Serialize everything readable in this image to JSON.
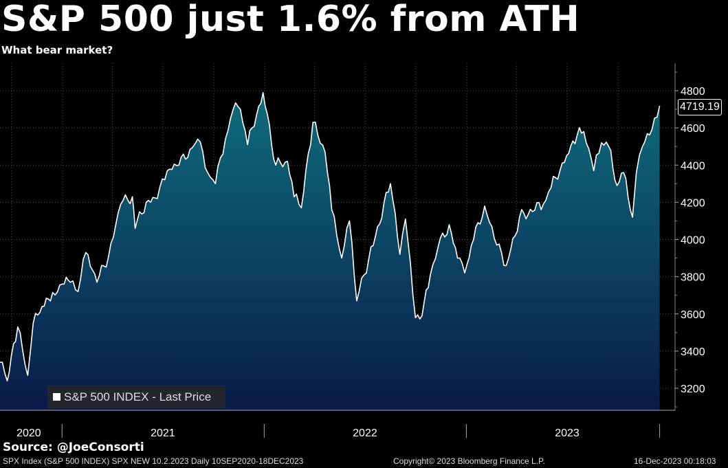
{
  "title": "S&P 500 just 1.6% from ATH",
  "subtitle": "What bear market?",
  "source": "Source:  @JoeConsorti",
  "footer": {
    "left": "SPX Index (S&P 500 INDEX) SPX NEW 10.2.2023  Daily 10SEP2020-18DEC2023",
    "center": "Copyright© 2023 Bloomberg Finance L.P.",
    "right": "16-Dec-2023 00:18:03"
  },
  "chart_data": {
    "type": "area",
    "title": "S&P 500 just 1.6% from ATH",
    "subtitle": "What bear market?",
    "legend": [
      "S&P 500 INDEX - Last Price"
    ],
    "legend_position": "bottom-left",
    "last_value_label": "4719.19",
    "y_axis_side": "right",
    "ylim": [
      3100,
      4900
    ],
    "yticks": [
      3200,
      3400,
      3600,
      3800,
      4000,
      4200,
      4400,
      4600,
      4800
    ],
    "x_tick_labels": [
      "2020",
      "2021",
      "2022",
      "2023"
    ],
    "grid": true,
    "colors": {
      "line": "#ffffff",
      "fill_top": "#0e6d7c",
      "fill_bottom": "#0a1a4a"
    },
    "series": [
      {
        "name": "S&P 500 INDEX - Last Price",
        "x": [
          "2020-09-10",
          "2020-09-23",
          "2020-10-12",
          "2020-10-30",
          "2020-11-09",
          "2020-11-25",
          "2020-12-10",
          "2020-12-31",
          "2021-01-15",
          "2021-01-29",
          "2021-02-12",
          "2021-03-04",
          "2021-03-25",
          "2021-04-16",
          "2021-05-07",
          "2021-05-12",
          "2021-06-01",
          "2021-06-21",
          "2021-07-09",
          "2021-07-30",
          "2021-08-27",
          "2021-09-02",
          "2021-09-20",
          "2021-10-04",
          "2021-10-22",
          "2021-11-05",
          "2021-11-18",
          "2021-12-01",
          "2021-12-29",
          "2022-01-21",
          "2022-02-11",
          "2022-02-23",
          "2022-03-08",
          "2022-03-29",
          "2022-04-20",
          "2022-05-02",
          "2022-05-20",
          "2022-06-03",
          "2022-06-16",
          "2022-07-08",
          "2022-08-16",
          "2022-09-02",
          "2022-09-12",
          "2022-09-30",
          "2022-10-12",
          "2022-10-27",
          "2022-11-10",
          "2022-11-30",
          "2022-12-15",
          "2022-12-28",
          "2023-01-13",
          "2023-02-02",
          "2023-02-24",
          "2023-03-13",
          "2023-04-06",
          "2023-05-19",
          "2023-06-02",
          "2023-06-30",
          "2023-07-19",
          "2023-07-31",
          "2023-08-18",
          "2023-09-01",
          "2023-09-14",
          "2023-09-29",
          "2023-10-11",
          "2023-10-27",
          "2023-11-03",
          "2023-11-14",
          "2023-12-01",
          "2023-12-15"
        ],
        "y": [
          3340,
          3240,
          3530,
          3270,
          3550,
          3640,
          3670,
          3760,
          3770,
          3720,
          3930,
          3770,
          3910,
          4190,
          4230,
          4060,
          4200,
          4220,
          4370,
          4400,
          4510,
          4540,
          4360,
          4300,
          4540,
          4700,
          4700,
          4510,
          4790,
          4400,
          4420,
          4230,
          4170,
          4630,
          4470,
          4160,
          3900,
          4100,
          3670,
          3900,
          4300,
          3920,
          4110,
          3580,
          3590,
          3810,
          3960,
          4080,
          3900,
          3820,
          4000,
          4180,
          3970,
          3860,
          4120,
          4190,
          4280,
          4450,
          4560,
          4580,
          4370,
          4520,
          4500,
          4290,
          4360,
          4120,
          4360,
          4500,
          4590,
          4719.19
        ]
      }
    ]
  }
}
